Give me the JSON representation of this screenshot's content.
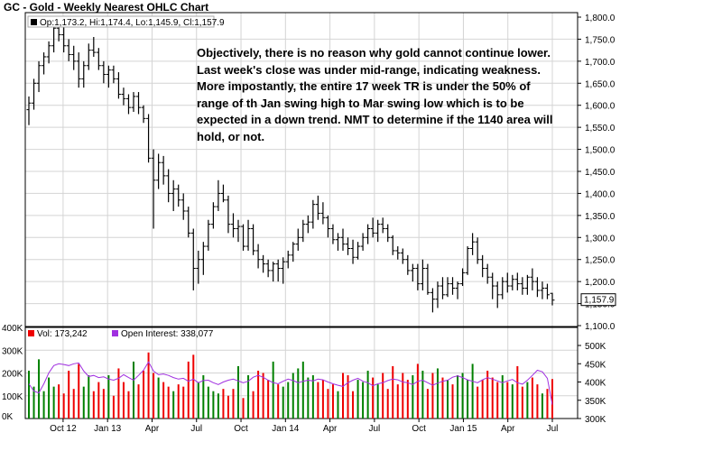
{
  "title": "GC - Gold - Weekly Nearest OHLC Chart",
  "price_legend": "Op:1,173.2, Hi:1,174.4, Lo:1,145.9, Cl:1,157.9",
  "last_price_label": "1,157.9",
  "volume_legend": {
    "vol": "Vol: 173,242",
    "oi": "Open Interest: 338,077"
  },
  "annotation": "Objectively, there is no reason why gold cannot continue lower.  Last week's close was under mid-range, indicating weakness.  More impostantly, the entire 17 week TR is under the 50% of range of th Jan swing high to Mar swing low which is to be expected in a down trend.  NMT to determine if the 1140 area will hold, or not.",
  "colors": {
    "up_volume": "#008000",
    "down_volume": "#ee0000",
    "open_interest": "#a030e0",
    "price_bar": "#000000",
    "grid": "#d4d4d4"
  },
  "chart_data": [
    {
      "type": "ohlc",
      "x_tick_labels": [
        "Oct 12",
        "Jan 13",
        "Apr",
        "Jul",
        "Oct",
        "Jan 14",
        "Apr",
        "Jul",
        "Oct",
        "Jan 15",
        "Apr",
        "Jul"
      ],
      "y_tick_labels": [
        "1,800.0",
        "1,750.0",
        "1,700.0",
        "1,650.0",
        "1,600.0",
        "1,550.0",
        "1,500.0",
        "1,450.0",
        "1,400.0",
        "1,350.0",
        "1,300.0",
        "1,250.0",
        "1,200.0",
        "1,150.0",
        "1,100.0"
      ],
      "ylim": [
        1100,
        1800
      ],
      "grid": true,
      "series": [
        {
          "name": "GC",
          "values": [
            [
              1590,
              1620,
              1555,
              1605
            ],
            [
              1605,
              1660,
              1590,
              1650
            ],
            [
              1650,
              1700,
              1630,
              1690
            ],
            [
              1690,
              1720,
              1670,
              1710
            ],
            [
              1710,
              1745,
              1695,
              1735
            ],
            [
              1735,
              1790,
              1720,
              1775
            ],
            [
              1775,
              1795,
              1745,
              1760
            ],
            [
              1760,
              1780,
              1720,
              1735
            ],
            [
              1735,
              1750,
              1700,
              1715
            ],
            [
              1715,
              1735,
              1680,
              1700
            ],
            [
              1700,
              1720,
              1640,
              1660
            ],
            [
              1660,
              1700,
              1640,
              1690
            ],
            [
              1690,
              1740,
              1680,
              1725
            ],
            [
              1725,
              1755,
              1710,
              1720
            ],
            [
              1720,
              1730,
              1680,
              1690
            ],
            [
              1690,
              1700,
              1650,
              1670
            ],
            [
              1670,
              1690,
              1640,
              1680
            ],
            [
              1680,
              1690,
              1650,
              1660
            ],
            [
              1660,
              1675,
              1615,
              1625
            ],
            [
              1625,
              1640,
              1600,
              1615
            ],
            [
              1615,
              1625,
              1580,
              1595
            ],
            [
              1595,
              1630,
              1585,
              1620
            ],
            [
              1620,
              1630,
              1580,
              1595
            ],
            [
              1595,
              1600,
              1560,
              1570
            ],
            [
              1570,
              1580,
              1470,
              1480
            ],
            [
              1480,
              1500,
              1320,
              1430
            ],
            [
              1430,
              1490,
              1410,
              1470
            ],
            [
              1470,
              1485,
              1420,
              1440
            ],
            [
              1440,
              1455,
              1380,
              1400
            ],
            [
              1400,
              1430,
              1360,
              1410
            ],
            [
              1410,
              1420,
              1370,
              1385
            ],
            [
              1385,
              1400,
              1340,
              1360
            ],
            [
              1360,
              1370,
              1300,
              1310
            ],
            [
              1310,
              1320,
              1180,
              1230
            ],
            [
              1230,
              1270,
              1195,
              1250
            ],
            [
              1250,
              1290,
              1215,
              1280
            ],
            [
              1280,
              1340,
              1270,
              1330
            ],
            [
              1330,
              1380,
              1320,
              1370
            ],
            [
              1370,
              1430,
              1360,
              1400
            ],
            [
              1400,
              1420,
              1380,
              1385
            ],
            [
              1385,
              1395,
              1310,
              1330
            ],
            [
              1330,
              1355,
              1300,
              1320
            ],
            [
              1320,
              1340,
              1290,
              1325
            ],
            [
              1325,
              1330,
              1270,
              1280
            ],
            [
              1280,
              1340,
              1270,
              1320
            ],
            [
              1320,
              1330,
              1260,
              1270
            ],
            [
              1270,
              1285,
              1230,
              1250
            ],
            [
              1250,
              1260,
              1220,
              1240
            ],
            [
              1240,
              1250,
              1210,
              1225
            ],
            [
              1225,
              1245,
              1200,
              1240
            ],
            [
              1240,
              1250,
              1200,
              1230
            ],
            [
              1230,
              1255,
              1195,
              1245
            ],
            [
              1245,
              1270,
              1230,
              1260
            ],
            [
              1260,
              1290,
              1245,
              1285
            ],
            [
              1285,
              1320,
              1270,
              1300
            ],
            [
              1300,
              1340,
              1290,
              1330
            ],
            [
              1330,
              1350,
              1310,
              1335
            ],
            [
              1335,
              1385,
              1320,
              1375
            ],
            [
              1375,
              1395,
              1340,
              1355
            ],
            [
              1355,
              1380,
              1330,
              1345
            ],
            [
              1345,
              1350,
              1300,
              1320
            ],
            [
              1320,
              1330,
              1285,
              1295
            ],
            [
              1295,
              1310,
              1270,
              1300
            ],
            [
              1300,
              1320,
              1270,
              1285
            ],
            [
              1285,
              1300,
              1260,
              1275
            ],
            [
              1275,
              1295,
              1240,
              1255
            ],
            [
              1255,
              1290,
              1250,
              1280
            ],
            [
              1280,
              1310,
              1270,
              1300
            ],
            [
              1300,
              1330,
              1285,
              1320
            ],
            [
              1320,
              1345,
              1300,
              1310
            ],
            [
              1310,
              1340,
              1290,
              1330
            ],
            [
              1330,
              1345,
              1310,
              1320
            ],
            [
              1320,
              1330,
              1290,
              1300
            ],
            [
              1300,
              1305,
              1260,
              1270
            ],
            [
              1270,
              1280,
              1250,
              1265
            ],
            [
              1265,
              1275,
              1240,
              1250
            ],
            [
              1250,
              1260,
              1215,
              1225
            ],
            [
              1225,
              1240,
              1200,
              1230
            ],
            [
              1230,
              1240,
              1180,
              1195
            ],
            [
              1195,
              1250,
              1180,
              1230
            ],
            [
              1230,
              1240,
              1170,
              1175
            ],
            [
              1175,
              1185,
              1130,
              1160
            ],
            [
              1160,
              1200,
              1140,
              1190
            ],
            [
              1190,
              1210,
              1160,
              1170
            ],
            [
              1170,
              1210,
              1165,
              1195
            ],
            [
              1195,
              1210,
              1170,
              1185
            ],
            [
              1185,
              1200,
              1160,
              1195
            ],
            [
              1195,
              1230,
              1190,
              1220
            ],
            [
              1220,
              1280,
              1215,
              1275
            ],
            [
              1275,
              1310,
              1260,
              1290
            ],
            [
              1290,
              1300,
              1240,
              1250
            ],
            [
              1250,
              1260,
              1210,
              1230
            ],
            [
              1230,
              1240,
              1195,
              1210
            ],
            [
              1210,
              1220,
              1160,
              1190
            ],
            [
              1190,
              1200,
              1140,
              1170
            ],
            [
              1170,
              1210,
              1160,
              1200
            ],
            [
              1200,
              1220,
              1175,
              1190
            ],
            [
              1190,
              1215,
              1180,
              1205
            ],
            [
              1205,
              1220,
              1180,
              1195
            ],
            [
              1195,
              1210,
              1170,
              1185
            ],
            [
              1185,
              1215,
              1170,
              1210
            ],
            [
              1210,
              1230,
              1180,
              1200
            ],
            [
              1200,
              1210,
              1165,
              1180
            ],
            [
              1180,
              1200,
              1160,
              1185
            ],
            [
              1185,
              1195,
              1160,
              1170
            ],
            [
              1173.2,
              1174.4,
              1145.9,
              1157.9
            ]
          ]
        }
      ]
    },
    {
      "type": "bar",
      "title": "Vol / Open Interest",
      "y_tick_labels": [
        "400K",
        "300K",
        "200K",
        "100K",
        "0K"
      ],
      "y2_tick_labels": [
        "500K",
        "450K",
        "400K",
        "350K",
        "300K"
      ],
      "ylim": [
        0,
        400000
      ],
      "y2lim": [
        300000,
        500000
      ],
      "series": [
        {
          "name": "Vol",
          "values": [
            210000,
            140000,
            260000,
            120000,
            180000,
            140000,
            150000,
            110000,
            210000,
            130000,
            240000,
            140000,
            190000,
            120000,
            160000,
            130000,
            190000,
            100000,
            220000,
            160000,
            120000,
            250000,
            150000,
            210000,
            290000,
            200000,
            180000,
            160000,
            140000,
            120000,
            150000,
            140000,
            250000,
            280000,
            160000,
            190000,
            140000,
            120000,
            110000,
            130000,
            100000,
            130000,
            230000,
            90000,
            190000,
            120000,
            210000,
            200000,
            170000,
            250000,
            150000,
            140000,
            160000,
            200000,
            220000,
            250000,
            180000,
            190000,
            160000,
            170000,
            130000,
            150000,
            120000,
            200000,
            190000,
            120000,
            170000,
            160000,
            210000,
            180000,
            150000,
            200000,
            130000,
            230000,
            150000,
            200000,
            170000,
            190000,
            240000,
            210000,
            130000,
            200000,
            220000,
            180000,
            170000,
            150000,
            190000,
            200000,
            170000,
            240000,
            140000,
            170000,
            210000,
            180000,
            160000,
            190000,
            160000,
            150000,
            230000,
            140000,
            160000,
            180000,
            150000,
            110000,
            130000,
            173242
          ]
        },
        {
          "name": "Open Interest",
          "values": [
            395000,
            375000,
            370000,
            395000,
            425000,
            445000,
            450000,
            448000,
            445000,
            450000,
            452000,
            430000,
            415000,
            418000,
            412000,
            414000,
            408000,
            405000,
            410000,
            420000,
            412000,
            405000,
            418000,
            432000,
            455000,
            430000,
            420000,
            422000,
            418000,
            412000,
            408000,
            410000,
            402000,
            408000,
            398000,
            404000,
            405000,
            398000,
            393000,
            400000,
            405000,
            408000,
            403000,
            398000,
            402000,
            413000,
            418000,
            413000,
            405000,
            398000,
            395000,
            402000,
            408000,
            404000,
            398000,
            402000,
            405000,
            403000,
            408000,
            406000,
            400000,
            395000,
            391000,
            388000,
            398000,
            405000,
            410000,
            402000,
            398000,
            390000,
            395000,
            398000,
            404000,
            408000,
            406000,
            400000,
            398000,
            393000,
            402000,
            405000,
            398000,
            391000,
            397000,
            402000,
            405000,
            413000,
            417000,
            412000,
            406000,
            402000,
            398000,
            406000,
            412000,
            408000,
            403000,
            398000,
            403000,
            407000,
            398000,
            394000,
            405000,
            418000,
            432000,
            428000,
            410000,
            338077
          ]
        }
      ]
    }
  ]
}
